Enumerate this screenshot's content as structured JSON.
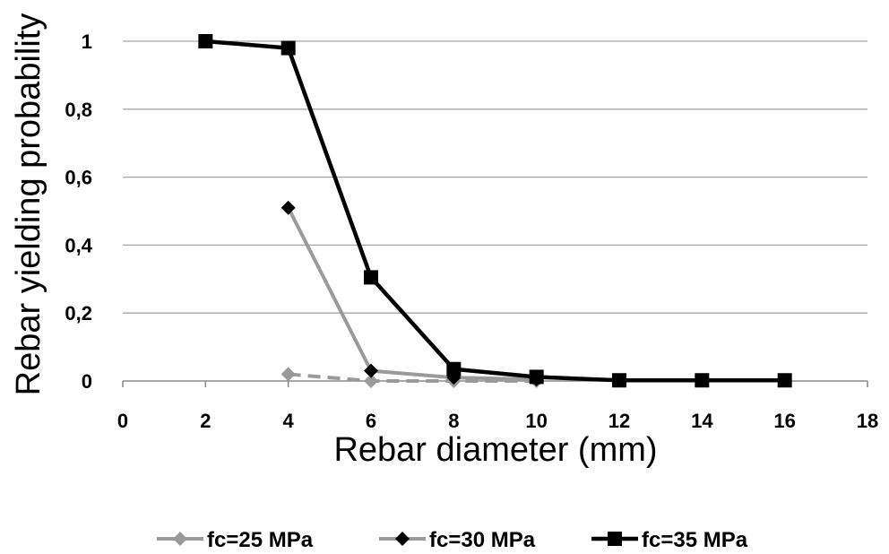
{
  "chart_data": {
    "type": "line",
    "title": "",
    "xlabel": "Rebar diameter (mm)",
    "ylabel": "Rebar yielding probability",
    "xlim": [
      0,
      18
    ],
    "ylim": [
      0,
      1
    ],
    "x_ticks": [
      0,
      2,
      4,
      6,
      8,
      10,
      12,
      14,
      16,
      18
    ],
    "x_tick_labels": [
      "0",
      "2",
      "4",
      "6",
      "8",
      "10",
      "12",
      "14",
      "16",
      "18"
    ],
    "y_ticks": [
      0,
      0.2,
      0.4,
      0.6,
      0.8,
      1
    ],
    "y_tick_labels": [
      "0",
      "0,2",
      "0,4",
      "0,6",
      "0,8",
      "1"
    ],
    "grid": "horizontal",
    "legend_position": "bottom",
    "series": [
      {
        "name": "fc=25 MPa",
        "color": "#9a9a9a",
        "marker": "diamond",
        "line_style": "dashed",
        "points": [
          [
            4,
            0.02
          ],
          [
            6,
            0.0
          ],
          [
            8,
            0.0
          ],
          [
            10,
            0.0
          ]
        ]
      },
      {
        "name": "fc=30 MPa",
        "color": "#9a9a9a",
        "marker_color": "#000000",
        "marker": "diamond",
        "line_style": "solid",
        "points": [
          [
            4,
            0.51
          ],
          [
            6,
            0.03
          ],
          [
            8,
            0.01
          ],
          [
            10,
            0.005
          ]
        ]
      },
      {
        "name": "fc=35 MPa",
        "color": "#000000",
        "marker": "square",
        "line_style": "solid",
        "points": [
          [
            2,
            1.0
          ],
          [
            4,
            0.98
          ],
          [
            6,
            0.305
          ],
          [
            8,
            0.035
          ],
          [
            10,
            0.012
          ],
          [
            12,
            0.002
          ],
          [
            14,
            0.002
          ],
          [
            16,
            0.002
          ]
        ]
      }
    ]
  }
}
